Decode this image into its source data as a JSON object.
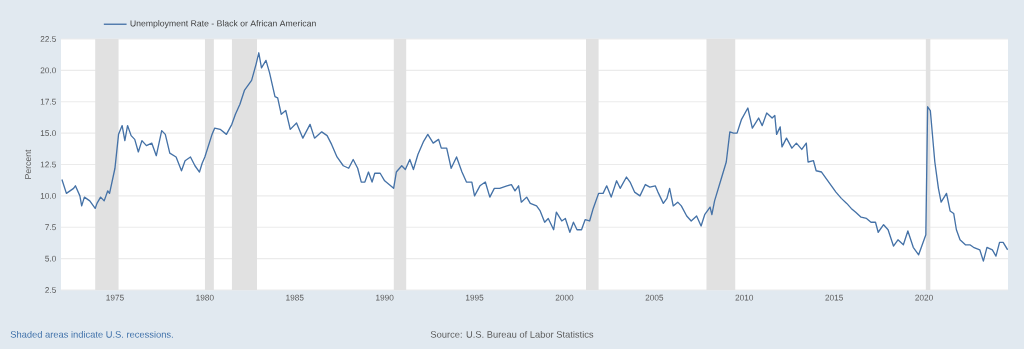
{
  "chart_data": {
    "type": "line",
    "ylabel": "Percent",
    "annotations": [
      "Shaded areas indicate U.S. recessions.",
      "Source: U.S. Bureau of Labor Statistics"
    ],
    "series": [
      {
        "name": "Unemployment Rate - Black or African American",
        "color": "#4572a7",
        "x": [
          1972.05,
          1972.3,
          1972.7,
          1972.8,
          1973.05,
          1973.15,
          1973.3,
          1973.6,
          1973.9,
          1974.0,
          1974.2,
          1974.4,
          1974.6,
          1974.7,
          1975.0,
          1975.2,
          1975.4,
          1975.55,
          1975.7,
          1975.9,
          1976.1,
          1976.3,
          1976.5,
          1976.75,
          1977.05,
          1977.3,
          1977.6,
          1977.8,
          1978.05,
          1978.4,
          1978.7,
          1978.9,
          1979.2,
          1979.45,
          1979.7,
          1979.85,
          1980.0,
          1980.4,
          1980.55,
          1980.85,
          1981.2,
          1981.5,
          1981.7,
          1981.95,
          1982.2,
          1982.6,
          1982.85,
          1983.0,
          1983.15,
          1983.4,
          1983.6,
          1983.9,
          1984.05,
          1984.25,
          1984.5,
          1984.75,
          1985.1,
          1985.45,
          1985.85,
          1986.1,
          1986.5,
          1986.8,
          1987.05,
          1987.35,
          1987.7,
          1988.0,
          1988.25,
          1988.5,
          1988.7,
          1988.9,
          1989.1,
          1989.3,
          1989.45,
          1989.75,
          1990.0,
          1990.5,
          1990.65,
          1990.95,
          1991.15,
          1991.4,
          1991.6,
          1991.85,
          1992.15,
          1992.4,
          1992.7,
          1993.0,
          1993.15,
          1993.45,
          1993.7,
          1994.0,
          1994.3,
          1994.55,
          1994.85,
          1995.0,
          1995.3,
          1995.6,
          1995.85,
          1996.1,
          1996.4,
          1996.8,
          1997.05,
          1997.25,
          1997.45,
          1997.6,
          1997.9,
          1998.1,
          1998.45,
          1998.65,
          1998.9,
          1999.1,
          1999.4,
          1999.55,
          1999.85,
          2000.05,
          2000.3,
          2000.5,
          2000.7,
          2000.95,
          2001.15,
          2001.4,
          2001.6,
          2001.9,
          2002.15,
          2002.35,
          2002.6,
          2002.9,
          2003.1,
          2003.45,
          2003.65,
          2003.9,
          2004.2,
          2004.5,
          2004.75,
          2005.05,
          2005.2,
          2005.5,
          2005.7,
          2005.85,
          2006.05,
          2006.3,
          2006.5,
          2006.8,
          2007.05,
          2007.35,
          2007.6,
          2007.8,
          2008.1,
          2008.2,
          2008.35,
          2008.75,
          2009.0,
          2009.2,
          2009.4,
          2009.6,
          2009.85,
          2010.2,
          2010.45,
          2010.8,
          2011.0,
          2011.25,
          2011.55,
          2011.7,
          2011.8,
          2012.0,
          2012.1,
          2012.35,
          2012.65,
          2012.9,
          2013.2,
          2013.45,
          2013.55,
          2013.85,
          2014.0,
          2014.3,
          2014.55,
          2014.85,
          2015.1,
          2015.4,
          2015.7,
          2015.95,
          2016.2,
          2016.5,
          2016.8,
          2017.05,
          2017.3,
          2017.45,
          2017.75,
          2018.0,
          2018.3,
          2018.55,
          2018.85,
          2019.1,
          2019.4,
          2019.7,
          2019.95,
          2020.1,
          2020.2,
          2020.35,
          2020.6,
          2020.8,
          2020.95,
          2021.25,
          2021.45,
          2021.65,
          2021.8,
          2022.0,
          2022.3,
          2022.55,
          2022.75,
          2023.1,
          2023.3,
          2023.5,
          2023.8,
          2024.0,
          2024.2,
          2024.4,
          2024.65
        ],
        "values": [
          11.3,
          10.2,
          10.6,
          10.8,
          10.0,
          9.2,
          9.9,
          9.6,
          9.0,
          9.4,
          9.9,
          9.6,
          10.4,
          10.2,
          12.2,
          14.9,
          15.6,
          14.4,
          15.6,
          14.8,
          14.5,
          13.5,
          14.4,
          14.0,
          14.2,
          13.2,
          15.2,
          14.9,
          13.4,
          13.1,
          12.0,
          12.8,
          13.1,
          12.4,
          11.9,
          12.6,
          13.1,
          14.9,
          15.4,
          15.3,
          14.9,
          15.7,
          16.5,
          17.3,
          18.4,
          19.2,
          20.5,
          21.4,
          20.2,
          20.8,
          19.8,
          17.9,
          17.8,
          16.5,
          16.8,
          15.3,
          15.8,
          14.6,
          15.7,
          14.6,
          15.1,
          14.8,
          14.1,
          13.1,
          12.4,
          12.2,
          12.9,
          12.2,
          11.1,
          11.1,
          11.9,
          11.1,
          11.8,
          11.8,
          11.2,
          10.6,
          11.9,
          12.4,
          12.1,
          12.9,
          12.1,
          13.3,
          14.3,
          14.9,
          14.2,
          14.5,
          13.8,
          13.8,
          12.2,
          13.1,
          11.9,
          11.1,
          11.1,
          10.0,
          10.8,
          11.1,
          9.9,
          10.6,
          10.6,
          10.8,
          10.9,
          10.4,
          10.8,
          9.5,
          9.9,
          9.4,
          9.2,
          8.8,
          7.9,
          8.2,
          7.3,
          8.7,
          8.0,
          8.2,
          7.1,
          7.9,
          7.3,
          7.3,
          8.1,
          8.0,
          9.0,
          10.2,
          10.2,
          10.8,
          9.9,
          11.2,
          10.6,
          11.5,
          11.1,
          10.3,
          10.0,
          10.9,
          10.7,
          10.8,
          10.3,
          9.4,
          9.8,
          10.6,
          9.2,
          9.5,
          9.2,
          8.4,
          8.0,
          8.4,
          7.6,
          8.5,
          9.1,
          8.5,
          9.6,
          11.5,
          12.7,
          15.1,
          15.0,
          15.0,
          16.1,
          17.0,
          15.4,
          16.2,
          15.6,
          16.6,
          16.2,
          16.4,
          14.9,
          15.5,
          13.9,
          14.6,
          13.8,
          14.2,
          13.7,
          14.2,
          12.7,
          12.8,
          12.0,
          11.9,
          11.4,
          10.8,
          10.3,
          9.8,
          9.4,
          9.0,
          8.7,
          8.3,
          8.2,
          7.9,
          7.9,
          7.1,
          7.7,
          7.3,
          6.0,
          6.5,
          6.1,
          7.2,
          5.9,
          5.3,
          6.3,
          6.9,
          17.1,
          16.8,
          12.7,
          10.6,
          9.5,
          10.2,
          8.8,
          8.6,
          7.3,
          6.5,
          6.1,
          6.1,
          5.9,
          5.7,
          4.8,
          5.9,
          5.7,
          5.2,
          6.3,
          6.3,
          5.7
        ]
      }
    ],
    "xlim": [
      1972,
      2024.67
    ],
    "xticks": [
      1975,
      1980,
      1985,
      1990,
      1995,
      2000,
      2005,
      2010,
      2015,
      2020
    ],
    "ylim": [
      2.5,
      22.5
    ],
    "yticks": [
      2.5,
      {
        "value": 5,
        "label": "5.0"
      },
      7.5,
      {
        "value": 10,
        "label": "10.0"
      },
      12.5,
      {
        "value": 15,
        "label": "15.0"
      },
      17.5,
      {
        "value": 20,
        "label": "20.0"
      },
      22.5
    ],
    "grid": "y",
    "legend": "top left",
    "line_style": "solid",
    "marker": "none",
    "bands": [
      {
        "axis": "x",
        "from": 1973.9,
        "to": 1975.2,
        "color": "#e1e1e1"
      },
      {
        "axis": "x",
        "from": 1980.0,
        "to": 1980.5,
        "color": "#e1e1e1"
      },
      {
        "axis": "x",
        "from": 1981.5,
        "to": 1982.9,
        "color": "#e1e1e1"
      },
      {
        "axis": "x",
        "from": 1990.5,
        "to": 1991.2,
        "color": "#e1e1e1"
      },
      {
        "axis": "x",
        "from": 2001.2,
        "to": 2001.9,
        "color": "#e1e1e1"
      },
      {
        "axis": "x",
        "from": 2007.9,
        "to": 2009.5,
        "color": "#e1e1e1"
      },
      {
        "axis": "x",
        "from": 2020.1,
        "to": 2020.35,
        "color": "#e1e1e1"
      }
    ]
  }
}
